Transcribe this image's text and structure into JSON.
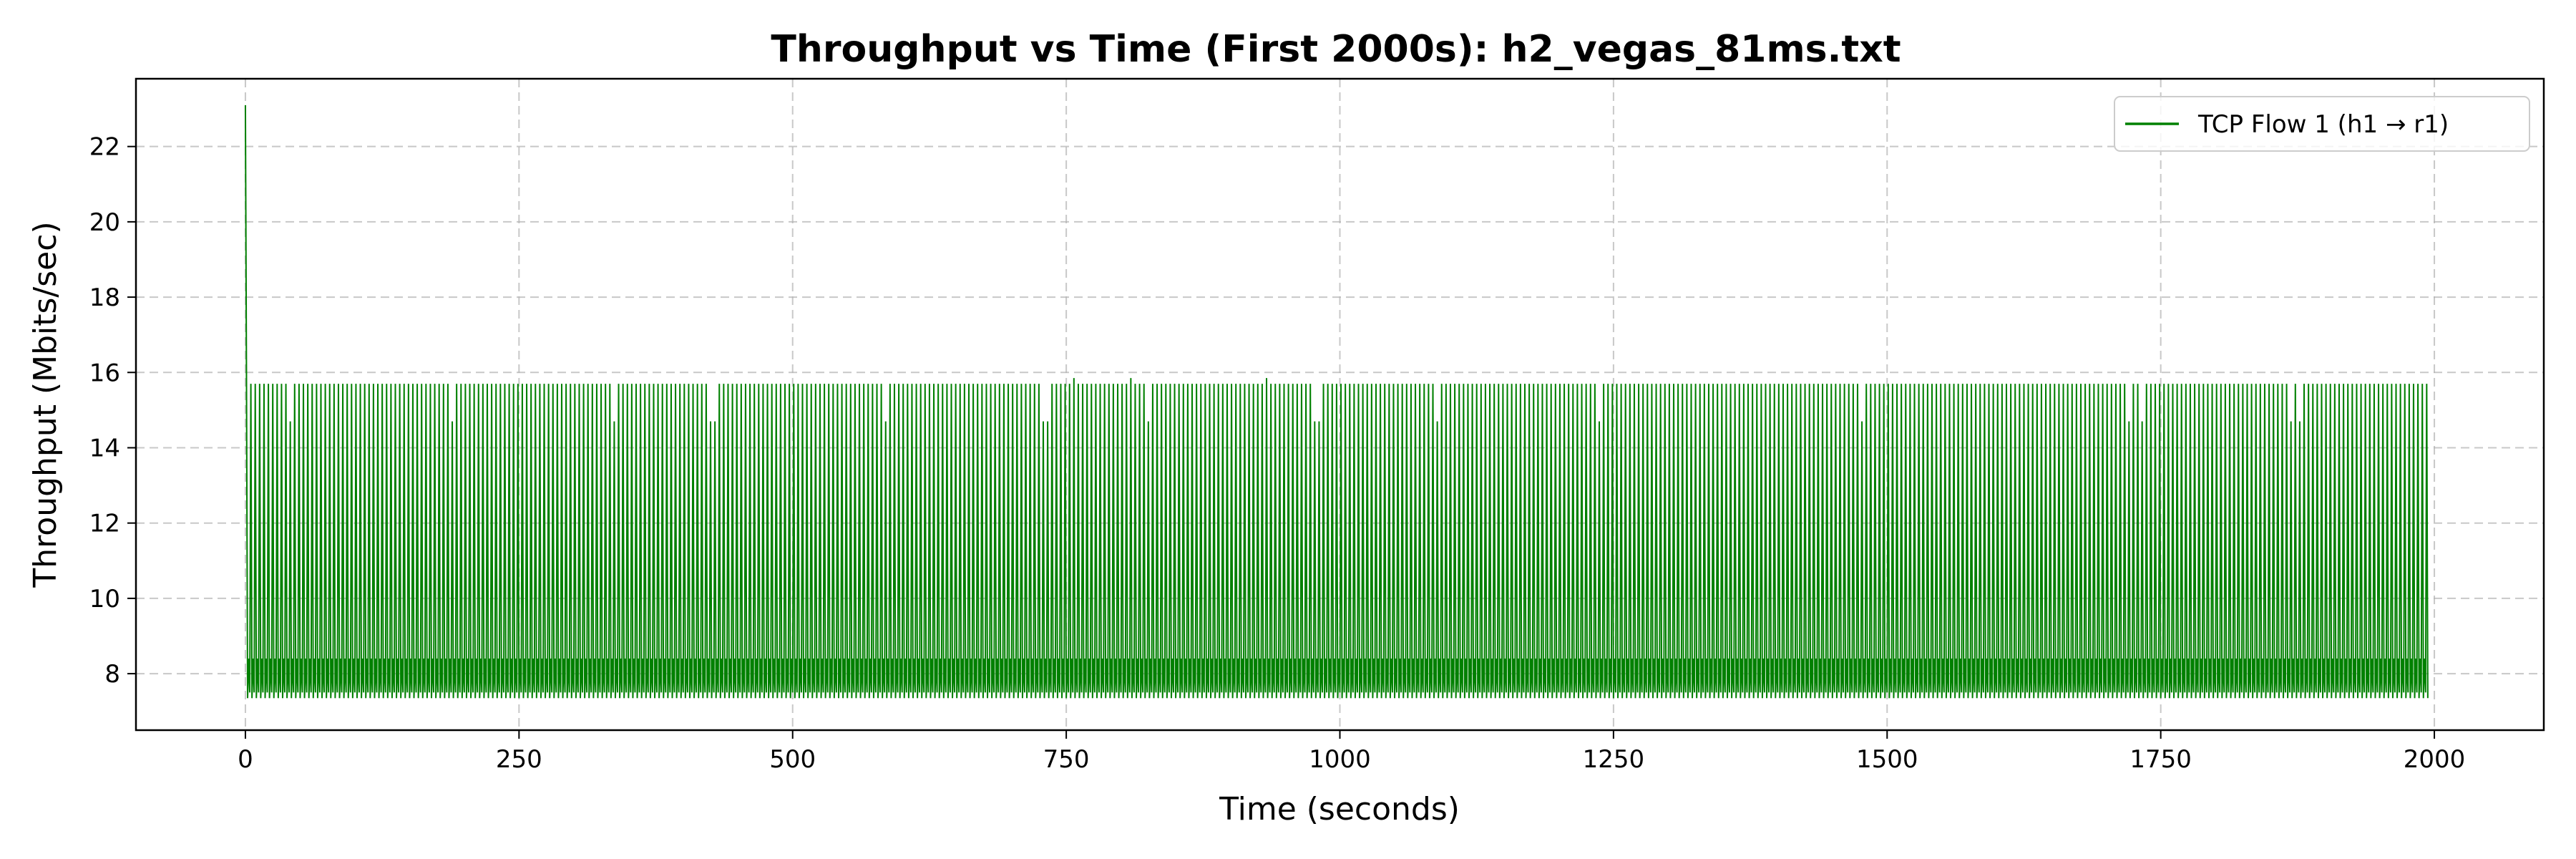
{
  "chart_data": {
    "type": "line",
    "title": "Throughput vs Time (First 2000s): h2_vegas_81ms.txt",
    "xlabel": "Time (seconds)",
    "ylabel": "Throughput (Mbits/sec)",
    "xlim": [
      -100,
      2100
    ],
    "ylim": [
      6.5,
      23.8
    ],
    "x_ticks": [
      0,
      250,
      500,
      750,
      1000,
      1250,
      1500,
      1750,
      2000
    ],
    "y_ticks": [
      8,
      10,
      12,
      14,
      16,
      18,
      20,
      22
    ],
    "grid": true,
    "legend_position": "top-right",
    "line_color": "#008000",
    "series": [
      {
        "name": "TCP Flow 1 (h1 → r1)",
        "color": "#008000",
        "pattern": {
          "description_values": {
            "start_spike": {
              "x": 0.0,
              "y": 23.1
            },
            "t_start": 0,
            "t_end": 1994,
            "sample_interval": 1.0,
            "period": 4,
            "peak": 15.7,
            "mid": 8.4,
            "trough": 7.35,
            "reduced_peak": 14.7,
            "reduced_peak_times": [
              22,
              38,
              40,
              182,
              186,
              188,
              330,
              336,
              338,
              424,
              428,
              578,
              582,
              584,
              728,
              732,
              824,
              826,
              976,
              978,
              980,
              1082,
              1088,
              1090,
              1230,
              1236,
              1476,
              1478,
              1720,
              1730,
              1732,
              1868,
              1876,
              1878
            ],
            "elevated_peak_times": [
              314,
              756,
              808,
              932
            ],
            "elevated_peak": 15.85
          }
        }
      }
    ]
  }
}
